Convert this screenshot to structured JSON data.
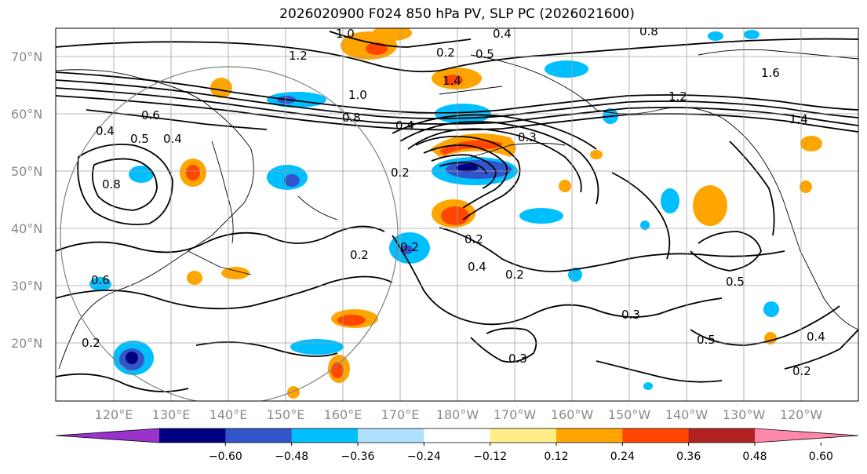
{
  "title": "2026020900 F024 850 hPa PV, SLP PC (2026021600)",
  "lat_labels": [
    "70°N",
    "60°N",
    "50°N",
    "40°N",
    "30°N",
    "20°N"
  ],
  "lon_labels": [
    "120°E",
    "130°E",
    "140°E",
    "150°E",
    "160°E",
    "170°E",
    "180°W",
    "170°W",
    "160°W",
    "150°W",
    "140°W",
    "130°W",
    "120°W"
  ],
  "contour_labels": [
    "1.0",
    "0.4",
    "0.8",
    "0.5",
    "0.2",
    "1.2",
    "1.4",
    "1.0",
    "0.8",
    "0.4",
    "0.4",
    "0.5",
    "0.2",
    "0.4",
    "0.2",
    "0.6",
    "0.2",
    "0.2",
    "0.3",
    "0.4",
    "0.2",
    "0.3",
    "0.3",
    "0.5",
    "0.5",
    "0.4",
    "0.2",
    "1.2",
    "1.4",
    "0.2",
    "1.6",
    "0.6",
    "0.8"
  ],
  "colorbar": {
    "colors": [
      "#9933cc",
      "#000080",
      "#3355cc",
      "#00bfff",
      "#b0e0ff",
      "#ffffff",
      "#ffee88",
      "#ffa500",
      "#ff4500",
      "#b22222",
      "#ff88aa"
    ],
    "ticks": [
      "−0.60",
      "−0.48",
      "−0.36",
      "−0.24",
      "−0.12",
      "0.12",
      "0.24",
      "0.36",
      "0.48",
      "0.60"
    ]
  },
  "legend_colors": {
    "contour": "#000000",
    "grid": "#a0a0a0",
    "circle": "#808080"
  }
}
